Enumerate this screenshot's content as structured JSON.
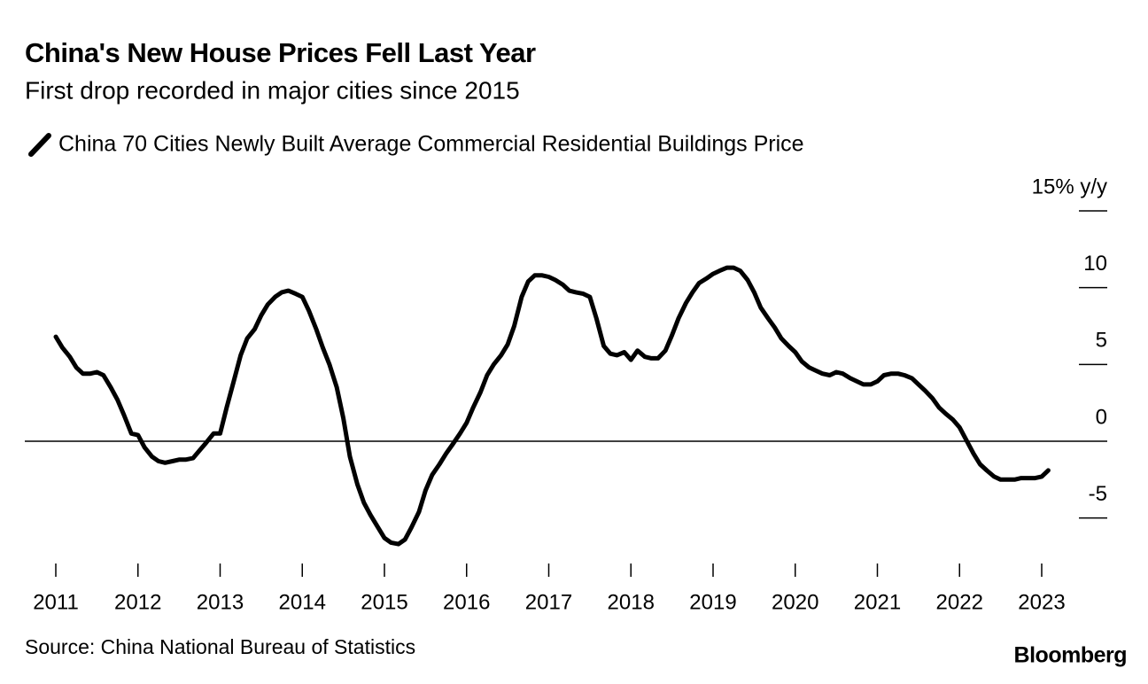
{
  "chart_data": {
    "type": "line",
    "title": "China's New House Prices Fell Last Year",
    "subtitle": "First drop recorded in major cities since 2015",
    "source": "Source: China National Bureau of Statistics",
    "brand": "Bloomberg",
    "x": [
      2011,
      2011.08,
      2011.17,
      2011.25,
      2011.33,
      2011.42,
      2011.5,
      2011.58,
      2011.67,
      2011.75,
      2011.83,
      2011.92,
      2012,
      2012.08,
      2012.17,
      2012.25,
      2012.33,
      2012.42,
      2012.5,
      2012.58,
      2012.67,
      2012.75,
      2012.83,
      2012.92,
      2013,
      2013.08,
      2013.17,
      2013.25,
      2013.33,
      2013.42,
      2013.5,
      2013.58,
      2013.67,
      2013.75,
      2013.83,
      2013.92,
      2014,
      2014.08,
      2014.17,
      2014.25,
      2014.33,
      2014.42,
      2014.5,
      2014.58,
      2014.67,
      2014.75,
      2014.83,
      2014.92,
      2015,
      2015.08,
      2015.17,
      2015.25,
      2015.33,
      2015.42,
      2015.5,
      2015.58,
      2015.67,
      2015.75,
      2015.83,
      2015.92,
      2016,
      2016.08,
      2016.17,
      2016.25,
      2016.33,
      2016.42,
      2016.5,
      2016.58,
      2016.67,
      2016.75,
      2016.83,
      2016.92,
      2017,
      2017.08,
      2017.17,
      2017.25,
      2017.33,
      2017.42,
      2017.5,
      2017.58,
      2017.67,
      2017.75,
      2017.83,
      2017.92,
      2018,
      2018.08,
      2018.17,
      2018.25,
      2018.33,
      2018.42,
      2018.5,
      2018.58,
      2018.67,
      2018.75,
      2018.83,
      2018.92,
      2019,
      2019.08,
      2019.17,
      2019.25,
      2019.33,
      2019.42,
      2019.5,
      2019.58,
      2019.67,
      2019.75,
      2019.83,
      2019.92,
      2020,
      2020.08,
      2020.17,
      2020.25,
      2020.33,
      2020.42,
      2020.5,
      2020.58,
      2020.67,
      2020.75,
      2020.83,
      2020.92,
      2021,
      2021.08,
      2021.17,
      2021.25,
      2021.33,
      2021.42,
      2021.5,
      2021.58,
      2021.67,
      2021.75,
      2021.83,
      2021.92,
      2022,
      2022.08,
      2022.17,
      2022.25,
      2022.33,
      2022.42,
      2022.5,
      2022.58,
      2022.67,
      2022.75,
      2022.83,
      2022.92,
      2023,
      2023.08
    ],
    "series": [
      {
        "name": "China 70 Cities Newly Built Average Commercial Residential Buildings Price",
        "color": "#000000",
        "values": [
          6.8,
          6.1,
          5.5,
          4.8,
          4.4,
          4.4,
          4.5,
          4.3,
          3.5,
          2.7,
          1.7,
          0.5,
          0.4,
          -0.4,
          -1.0,
          -1.3,
          -1.4,
          -1.3,
          -1.2,
          -1.2,
          -1.1,
          -0.6,
          -0.1,
          0.5,
          0.5,
          2.2,
          4.0,
          5.6,
          6.7,
          7.3,
          8.2,
          8.9,
          9.4,
          9.7,
          9.8,
          9.6,
          9.4,
          8.5,
          7.3,
          6.1,
          5.0,
          3.5,
          1.5,
          -1.0,
          -2.8,
          -4.0,
          -4.8,
          -5.6,
          -6.3,
          -6.6,
          -6.7,
          -6.4,
          -5.6,
          -4.6,
          -3.2,
          -2.2,
          -1.5,
          -0.8,
          -0.2,
          0.5,
          1.2,
          2.2,
          3.2,
          4.3,
          5.0,
          5.6,
          6.3,
          7.5,
          9.4,
          10.4,
          10.8,
          10.8,
          10.7,
          10.5,
          10.2,
          9.8,
          9.7,
          9.6,
          9.4,
          8.0,
          6.2,
          5.7,
          5.6,
          5.8,
          5.3,
          5.9,
          5.5,
          5.4,
          5.4,
          5.9,
          6.9,
          8.0,
          9.0,
          9.7,
          10.3,
          10.6,
          10.9,
          11.1,
          11.3,
          11.3,
          11.1,
          10.5,
          9.7,
          8.7,
          8.0,
          7.4,
          6.7,
          6.2,
          5.8,
          5.2,
          4.8,
          4.6,
          4.4,
          4.3,
          4.5,
          4.4,
          4.1,
          3.9,
          3.7,
          3.7,
          3.9,
          4.3,
          4.4,
          4.4,
          4.3,
          4.1,
          3.7,
          3.3,
          2.8,
          2.2,
          1.8,
          1.4,
          0.9,
          0.1,
          -0.8,
          -1.5,
          -1.9,
          -2.3,
          -2.5,
          -2.5,
          -2.5,
          -2.4,
          -2.4,
          -2.4,
          -2.3,
          -1.9
        ]
      }
    ],
    "xlim": [
      2011,
      2023
    ],
    "xticks": [
      2011,
      2012,
      2013,
      2014,
      2015,
      2016,
      2017,
      2018,
      2019,
      2020,
      2021,
      2022,
      2023
    ],
    "ylim": [
      -7.5,
      15
    ],
    "yticks": [
      {
        "value": 15,
        "label": "15% y/y"
      },
      10,
      5,
      0,
      -5
    ],
    "grid": false
  }
}
